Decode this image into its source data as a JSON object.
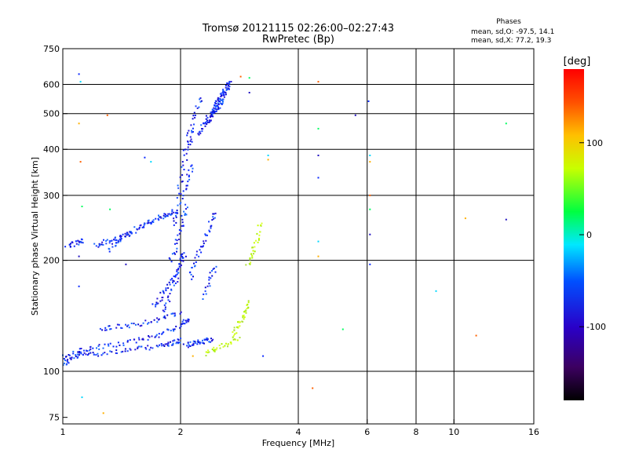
{
  "chart_data": {
    "type": "scatter",
    "title": "Tromsø 20121115 02:26:00–02:27:43",
    "subtitle": "RwPretec (Bp)",
    "xlabel": "Frequency [MHz]",
    "ylabel": "Stationary phase Virtual Height [km]",
    "x_scale": "log2",
    "y_scale": "log",
    "xlim": [
      1,
      16
    ],
    "ylim": [
      72,
      750
    ],
    "x_ticks": [
      1,
      2,
      4,
      6,
      8,
      10,
      16
    ],
    "x_tick_labels": [
      "1",
      "2",
      "4",
      "6",
      "8",
      "10",
      "16"
    ],
    "y_ticks": [
      75,
      100,
      200,
      300,
      400,
      500,
      600,
      750
    ],
    "y_tick_labels": [
      "75",
      "100",
      "200",
      "300",
      "400",
      "500",
      "600",
      "750"
    ],
    "grid_x": [
      2,
      4,
      6,
      8,
      10
    ],
    "grid_y": [
      100,
      200,
      300,
      400,
      500,
      600
    ],
    "phases": {
      "title": "Phases",
      "line_o": "mean, sd,O: -97.5, 14.1",
      "line_x": "mean, sd,X:  77.2, 19.3"
    },
    "colorbar": {
      "unit": "[deg]",
      "range": [
        -180,
        180
      ],
      "ticks": [
        100,
        0,
        -100
      ],
      "tick_labels": [
        "100",
        "0",
        "-100"
      ]
    },
    "series": [
      {
        "traces": [
          {
            "x": [
              1.0,
              1.02,
              1.05,
              1.1,
              1.15,
              1.2,
              1.3,
              1.4,
              1.5,
              1.6,
              1.7,
              1.8,
              1.85,
              1.9,
              1.95,
              2.0
            ],
            "y": [
              105,
              107,
              109,
              111,
              112,
              112,
              113,
              114,
              115,
              116,
              117,
              118,
              119,
              120,
              121,
              122
            ]
          },
          {
            "x": [
              1.0,
              1.05,
              1.1,
              1.15,
              1.2,
              1.3,
              1.4,
              1.5,
              1.6,
              1.7,
              1.8,
              1.9,
              2.0,
              2.05,
              2.1
            ],
            "y": [
              110,
              112,
              114,
              115,
              116,
              118,
              119,
              121,
              123,
              125,
              128,
              131,
              134,
              137,
              140
            ]
          },
          {
            "x": [
              1.25,
              1.3,
              1.4,
              1.5,
              1.6,
              1.7,
              1.8,
              1.9,
              2.0
            ],
            "y": [
              130,
              132,
              133,
              134,
              136,
              138,
              140,
              143,
              146
            ]
          },
          {
            "x": [
              1.7,
              1.75,
              1.8,
              1.85,
              1.9,
              1.95,
              2.0,
              2.05
            ],
            "y": [
              150,
              156,
              163,
              170,
              178,
              188,
              198,
              210
            ]
          },
          {
            "x": [
              1.8,
              1.85,
              1.9,
              1.95,
              2.0,
              2.05
            ],
            "y": [
              145,
              155,
              168,
              182,
              198,
              215
            ]
          },
          {
            "x": [
              1.88,
              1.92,
              1.96,
              2.0,
              2.04,
              2.08
            ],
            "y": [
              200,
              215,
              232,
              250,
              268,
              285
            ]
          },
          {
            "x": [
              1.9,
              1.95,
              2.0,
              2.05,
              2.1,
              2.15
            ],
            "y": [
              250,
              270,
              295,
              320,
              345,
              370
            ]
          },
          {
            "x": [
              1.95,
              2.0,
              2.05,
              2.1,
              2.15
            ],
            "y": [
              300,
              340,
              380,
              420,
              460
            ]
          },
          {
            "x": [
              2.05,
              2.1,
              2.15,
              2.2,
              2.25
            ],
            "y": [
              400,
              440,
              480,
              520,
              560
            ]
          },
          {
            "x": [
              1.3,
              1.35,
              1.4,
              1.45,
              1.5,
              1.55,
              1.6,
              1.65,
              1.7,
              1.75,
              1.8,
              1.85,
              1.9,
              1.95
            ],
            "y": [
              215,
              222,
              228,
              234,
              240,
              246,
              250,
              254,
              258,
              262,
              265,
              268,
              271,
              274
            ]
          },
          {
            "x": [
              1.2,
              1.25,
              1.3,
              1.35,
              1.4,
              1.45,
              1.5
            ],
            "y": [
              220,
              223,
              226,
              229,
              232,
              235,
              238
            ]
          },
          {
            "x": [
              1.02,
              1.05,
              1.08,
              1.1,
              1.12
            ],
            "y": [
              220,
              222,
              224,
              226,
              228
            ]
          },
          {
            "x": [
              2.1,
              2.15,
              2.2,
              2.25,
              2.3,
              2.35,
              2.4,
              2.45
            ],
            "y": [
              180,
              192,
              205,
              218,
              232,
              246,
              260,
              275
            ]
          },
          {
            "x": [
              2.3,
              2.35,
              2.4,
              2.45
            ],
            "y": [
              160,
              172,
              185,
              198
            ]
          },
          {
            "x": [
              2.2,
              2.25,
              2.3,
              2.35,
              2.4,
              2.45,
              2.5,
              2.55,
              2.6
            ],
            "y": [
              440,
              455,
              470,
              485,
              500,
              515,
              530,
              545,
              560
            ]
          },
          {
            "x": [
              2.3,
              2.35,
              2.4,
              2.45,
              2.5,
              2.55,
              2.6,
              2.65
            ],
            "y": [
              470,
              490,
              510,
              530,
              550,
              570,
              590,
              610
            ]
          },
          {
            "x": [
              2.4,
              2.45,
              2.5,
              2.55,
              2.6,
              2.65,
              2.7
            ],
            "y": [
              500,
              520,
              540,
              560,
              580,
              600,
              620
            ]
          },
          {
            "x": [
              2.05,
              2.1,
              2.15,
              2.2,
              2.25,
              2.3,
              2.35,
              2.4
            ],
            "y": [
              118,
              119,
              120,
              120,
              121,
              121,
              122,
              122
            ]
          }
        ]
      },
      {
        "traces": [
          {
            "x": [
              2.3,
              2.4,
              2.5,
              2.6,
              2.7,
              2.8
            ],
            "y": [
              112,
              115,
              117,
              119,
              121,
              123
            ]
          },
          {
            "x": [
              2.7,
              2.75,
              2.8,
              2.85,
              2.9,
              2.95,
              3.0
            ],
            "y": [
              125,
              130,
              135,
              140,
              145,
              150,
              155
            ]
          },
          {
            "x": [
              2.95,
              3.0,
              3.05,
              3.1,
              3.15,
              3.2
            ],
            "y": [
              195,
              205,
              215,
              225,
              240,
              260
            ]
          }
        ]
      }
    ],
    "stray_points": [
      {
        "x": 1.1,
        "y": 640
      },
      {
        "x": 1.11,
        "y": 610
      },
      {
        "x": 1.1,
        "y": 470
      },
      {
        "x": 1.11,
        "y": 370
      },
      {
        "x": 1.12,
        "y": 280
      },
      {
        "x": 1.1,
        "y": 205
      },
      {
        "x": 1.1,
        "y": 170
      },
      {
        "x": 1.12,
        "y": 85
      },
      {
        "x": 1.27,
        "y": 77
      },
      {
        "x": 1.3,
        "y": 495
      },
      {
        "x": 1.32,
        "y": 275
      },
      {
        "x": 1.45,
        "y": 195
      },
      {
        "x": 1.62,
        "y": 380
      },
      {
        "x": 1.68,
        "y": 370
      },
      {
        "x": 2.15,
        "y": 110
      },
      {
        "x": 2.85,
        "y": 630
      },
      {
        "x": 3.0,
        "y": 625
      },
      {
        "x": 3.0,
        "y": 570
      },
      {
        "x": 3.25,
        "y": 110
      },
      {
        "x": 3.35,
        "y": 385
      },
      {
        "x": 3.35,
        "y": 375
      },
      {
        "x": 4.5,
        "y": 610
      },
      {
        "x": 4.5,
        "y": 455
      },
      {
        "x": 4.5,
        "y": 385
      },
      {
        "x": 4.5,
        "y": 335
      },
      {
        "x": 4.5,
        "y": 225
      },
      {
        "x": 4.5,
        "y": 205
      },
      {
        "x": 4.35,
        "y": 90
      },
      {
        "x": 5.2,
        "y": 130
      },
      {
        "x": 5.6,
        "y": 495
      },
      {
        "x": 6.05,
        "y": 540
      },
      {
        "x": 6.1,
        "y": 385
      },
      {
        "x": 6.1,
        "y": 370
      },
      {
        "x": 6.1,
        "y": 300
      },
      {
        "x": 6.1,
        "y": 275
      },
      {
        "x": 6.1,
        "y": 235
      },
      {
        "x": 6.1,
        "y": 195
      },
      {
        "x": 9.0,
        "y": 165
      },
      {
        "x": 10.7,
        "y": 260
      },
      {
        "x": 11.4,
        "y": 125
      },
      {
        "x": 13.6,
        "y": 470
      },
      {
        "x": 13.6,
        "y": 258
      }
    ]
  }
}
